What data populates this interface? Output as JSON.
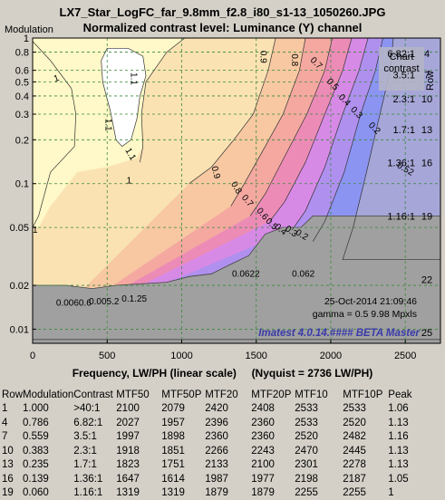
{
  "title": "LX7_Star_LogFC_far_9.8mm_f2.8_i80_s1-13_1050260.JPG",
  "subtitle": "Normalized contrast level:  Luminance (Y) channel",
  "chart_data": {
    "type": "heatmap",
    "ylabel": "Modulation",
    "xlabel": "Frequency, LW/PH (linear scale)",
    "nyquist": "(Nyquist = 2736 LW/PH)",
    "xlim": [
      0,
      2736
    ],
    "ylim": [
      0.008,
      1
    ],
    "y_scale": "log",
    "x_ticks": [
      "0",
      "500",
      "1000",
      "1500",
      "2000",
      "2500"
    ],
    "x_tick_values": [
      0,
      500,
      1000,
      1500,
      2000,
      2500
    ],
    "y_ticks": [
      "1",
      "0.8",
      "0.6",
      "0.5",
      "0.4",
      "0.3",
      "0.2",
      "0.1",
      "0.05",
      "0.02",
      "0.01"
    ],
    "y_tick_values": [
      1,
      0.8,
      0.6,
      0.5,
      0.4,
      0.3,
      0.2,
      0.1,
      0.05,
      0.02,
      0.01
    ],
    "grid": true,
    "contour_labels": [
      "1.1",
      "1.1",
      "1.1",
      "1",
      "1",
      "1",
      "0.9",
      "0.8",
      "0.7",
      "0.5",
      "0.4",
      "0.3",
      "0.2",
      "0.9",
      "0.8",
      "0.7",
      "0.6",
      "0.5",
      "0.4",
      "0.3",
      "0.2",
      "0.52",
      "0.062"
    ],
    "bottom_labels": [
      "0.0060.6",
      "0.005.2",
      "0.1.25",
      "0.0622"
    ],
    "chart_contrast_title": "Chart contrast",
    "row_label": "Row",
    "chart_contrast": [
      {
        "contrast": "6.82:1",
        "row": "4",
        "modulation": 0.786
      },
      {
        "contrast": "3.5:1",
        "row": "7",
        "modulation": 0.559
      },
      {
        "contrast": "2.3:1",
        "row": "10",
        "modulation": 0.383
      },
      {
        "contrast": "1.7:1",
        "row": "13",
        "modulation": 0.235
      },
      {
        "contrast": "1.36:1",
        "row": "16",
        "modulation": 0.139
      },
      {
        "contrast": "1.16:1",
        "row": "19",
        "modulation": 0.06
      },
      {
        "contrast": "",
        "row": "22",
        "modulation": 0.022
      },
      {
        "contrast": "",
        "row": "25",
        "modulation": 0.0095
      }
    ],
    "date": "25-Oct-2014 21:09:46",
    "info": "gamma = 0.5   9.98 Mpxls",
    "watermark": "Imatest 4.0.14.#### BETA Master"
  },
  "table": {
    "headers": [
      "Row",
      "Modulation",
      "Contrast",
      "MTF50",
      "MTF50P",
      "MTF20",
      "MTF20P",
      "MTF10",
      "MTF10P",
      "Peak"
    ],
    "rows": [
      [
        "1",
        "1.000",
        ">40:1",
        "2100",
        "2079",
        "2420",
        "2408",
        "2533",
        "2533",
        "1.06"
      ],
      [
        "4",
        "0.786",
        "6.82:1",
        "2027",
        "1957",
        "2396",
        "2360",
        "2533",
        "2520",
        "1.13"
      ],
      [
        "7",
        "0.559",
        "3.5:1",
        "1997",
        "1898",
        "2360",
        "2360",
        "2520",
        "2482",
        "1.16"
      ],
      [
        "10",
        "0.383",
        "2.3:1",
        "1918",
        "1851",
        "2266",
        "2243",
        "2470",
        "2445",
        "1.13"
      ],
      [
        "13",
        "0.235",
        "1.7:1",
        "1823",
        "1751",
        "2133",
        "2100",
        "2301",
        "2278",
        "1.13"
      ],
      [
        "16",
        "0.139",
        "1.36:1",
        "1647",
        "1614",
        "1987",
        "1977",
        "2198",
        "2187",
        "1.05"
      ],
      [
        "19",
        "0.060",
        "1.16:1",
        "1319",
        "1319",
        "1879",
        "1879",
        "2255",
        "2255",
        "1"
      ]
    ]
  },
  "colors": {
    "background": "#d4d0c8",
    "plot_gray": "#a0a0a0",
    "band_high": "#fff8c8",
    "band_peak": "#ffffff",
    "band_mid1": "#fbe2b2",
    "band_mid2": "#f7c8a2",
    "band_mid3": "#f4a8a0",
    "band_mid4": "#ec8cb6",
    "band_mid5": "#d68ae6",
    "band_low1": "#b090ee",
    "band_low2": "#8c94f2",
    "band_low3": "#a6a6d8",
    "watermark": "#3a3aaa"
  }
}
